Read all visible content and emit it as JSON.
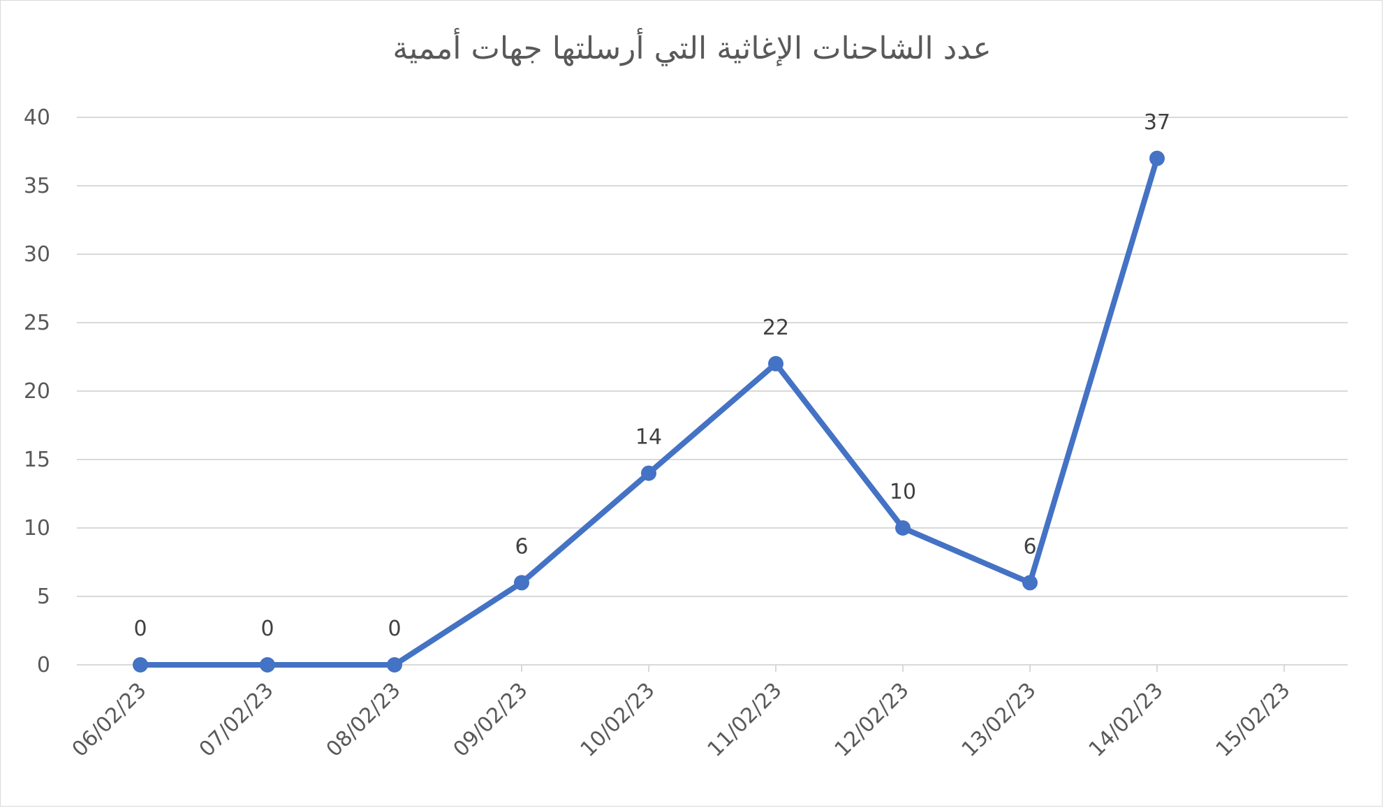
{
  "chart_data": {
    "type": "line",
    "title": "عدد الشاحنات الإغاثية التي أرسلتها جهات أممية",
    "categories": [
      "06/02/23",
      "07/02/23",
      "08/02/23",
      "09/02/23",
      "10/02/23",
      "11/02/23",
      "12/02/23",
      "13/02/23",
      "14/02/23",
      "15/02/23"
    ],
    "series": [
      {
        "values": [
          0,
          0,
          0,
          6,
          14,
          22,
          10,
          6,
          37,
          null
        ]
      }
    ],
    "data_labels": [
      "0",
      "0",
      "0",
      "6",
      "14",
      "22",
      "10",
      "6",
      "37",
      ""
    ],
    "yticks": [
      "0",
      "5",
      "10",
      "15",
      "20",
      "25",
      "30",
      "35",
      "40"
    ],
    "ylim": [
      0,
      40
    ],
    "grid": true,
    "legend": "none",
    "colors": {
      "line": "#4472c4",
      "grid": "#d9d9d9",
      "text": "#595959"
    }
  }
}
